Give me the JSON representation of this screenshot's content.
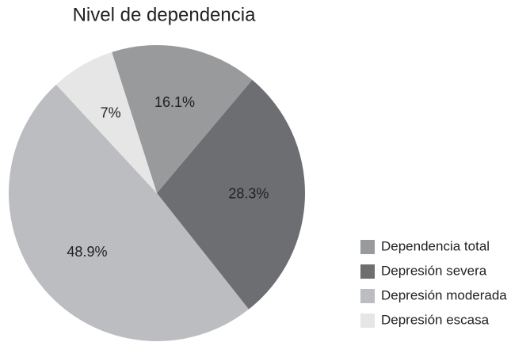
{
  "chart_data": {
    "type": "pie",
    "title": "Nivel de dependencia",
    "categories": [
      "Dependencia total",
      "Depresión severa",
      "Depresión moderada",
      "Depresión escasa"
    ],
    "values": [
      16.1,
      28.3,
      48.9,
      7
    ],
    "value_labels": [
      "16.1%",
      "28.3%",
      "48.9%",
      "7%"
    ],
    "colors": [
      "#999a9c",
      "#6d6e71",
      "#bcbdc0",
      "#e6e6e7"
    ],
    "legend": "bottom-right"
  }
}
